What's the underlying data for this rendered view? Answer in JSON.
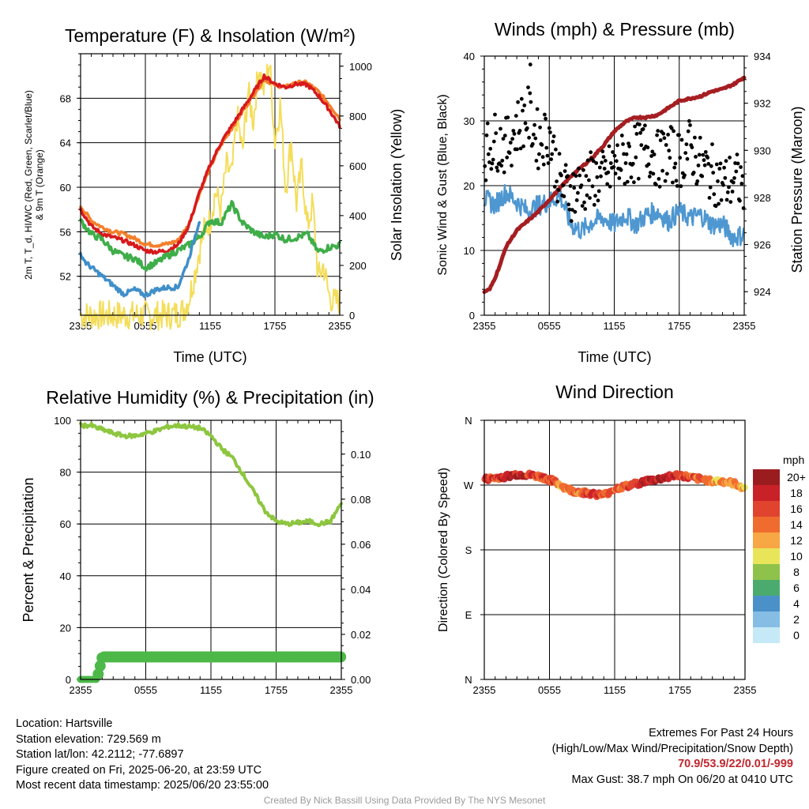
{
  "panels": {
    "temp": {
      "title": "Temperature (F) & Insolation (W/m²)",
      "ylabel_left_line1": "2m T, T_d, HI/WC (Red, Green, Scarlet/Blue)",
      "ylabel_left_line2": "& 9m T (Orange)",
      "ylabel_right": "Solar Insolation (Yellow)",
      "xlabel": "Time (UTC)"
    },
    "winds": {
      "title": "Winds (mph) & Pressure (mb)",
      "ylabel_left": "Sonic Wind & Gust (Blue, Black)",
      "ylabel_right": "Station Pressure (Maroon)",
      "xlabel": "Time (UTC)"
    },
    "rh": {
      "title": "Relative Humidity (%) & Precipitation (in)",
      "ylabel_left": "Percent & Precipitation"
    },
    "wdir": {
      "title": "Wind Direction",
      "ylabel_left": "Direction (Colored By Speed)",
      "colorbar_unit": "mph"
    }
  },
  "meta": {
    "location": "Location: Hartsville",
    "elevation": "Station elevation: 729.569 m",
    "latlon": "Station lat/lon: 42.2112; -77.6897",
    "created": "Figure created on Fri, 2025-06-20, at 23:59 UTC",
    "recent": "Most recent data timestamp: 2025/06/20 23:55:00",
    "extremes_title": "Extremes For Past 24 Hours",
    "extremes_sub": "(High/Low/Max Wind/Precipitation/Snow Depth)",
    "extremes_values": "70.9/53.9/22/0.01/-999",
    "max_gust": "Max Gust: 38.7 mph On 06/20 at 0410 UTC",
    "credit": "Created By Nick Bassill Using Data Provided By The NYS Mesonet"
  },
  "colors": {
    "temp_red": "#d7191c",
    "temp_orange": "#f47f2a",
    "dewpoint_green": "#3fae49",
    "heat_index_blue": "#3f8fc9",
    "insolation_yellow": "#f4dd5a",
    "wind_blue": "#4e97d1",
    "gust_black": "#000000",
    "pressure_maroon": "#a51e22",
    "rh_green": "#8dc63f",
    "precip_green": "#4cb848",
    "extremes_red": "#c0272d"
  },
  "chart_data": [
    {
      "type": "line",
      "title": "Temperature (F) & Insolation (W/m²)",
      "xlabel": "Time (UTC)",
      "x_ticks": [
        "2355",
        "0555",
        "1155",
        "1755",
        "2355"
      ],
      "x_range_hours": [
        0,
        24
      ],
      "ylabel": "2m T, T_d, HI/WC (Red, Green, Scarlet/Blue) & 9m T (Orange)",
      "ylim": [
        48.5,
        72
      ],
      "yticks": [
        52,
        56,
        60,
        64,
        68
      ],
      "y2label": "Solar Insolation (Yellow)",
      "y2lim": [
        0,
        1050
      ],
      "y2ticks": [
        0,
        200,
        400,
        600,
        800,
        1000
      ],
      "grid": true,
      "series": [
        {
          "name": "2m T",
          "color": "#d7191c",
          "axis": "left",
          "x": [
            0,
            1,
            2,
            3,
            4,
            5,
            6,
            7,
            8,
            9,
            10,
            11,
            12,
            13,
            14,
            15,
            16,
            17,
            18,
            19,
            20,
            21,
            22,
            23,
            24
          ],
          "values": [
            58,
            56.5,
            55.8,
            55.5,
            55.2,
            54.8,
            54.3,
            54.2,
            54.3,
            54.8,
            56.5,
            59.5,
            62,
            64,
            65.5,
            67,
            68.5,
            70,
            69.3,
            69,
            69.3,
            69.2,
            68.3,
            67,
            65.5
          ]
        },
        {
          "name": "9m T",
          "color": "#f47f2a",
          "axis": "left",
          "x": [
            0,
            1,
            2,
            3,
            4,
            5,
            6,
            7,
            8,
            9,
            10,
            11,
            12,
            13,
            14,
            15,
            16,
            17,
            18,
            19,
            20,
            21,
            22,
            23,
            24
          ],
          "values": [
            58.3,
            57,
            56.4,
            56,
            55.8,
            55.4,
            54.9,
            54.8,
            54.9,
            55.2,
            56.6,
            59.4,
            61.8,
            63.8,
            65.3,
            66.8,
            68.3,
            69.7,
            69.2,
            69,
            69.4,
            69.4,
            68.6,
            67.5,
            66.2
          ]
        },
        {
          "name": "T_d",
          "color": "#3fae49",
          "axis": "left",
          "x": [
            0,
            1,
            2,
            3,
            4,
            5,
            6,
            7,
            8,
            9,
            10,
            11,
            12,
            13,
            14,
            15,
            16,
            17,
            18,
            19,
            20,
            21,
            22,
            23,
            24
          ],
          "values": [
            57,
            55.8,
            55.3,
            54.3,
            53.8,
            53.6,
            52.8,
            53.2,
            53.8,
            54.3,
            54.8,
            55.5,
            57,
            56.8,
            58.5,
            56.8,
            56,
            55.5,
            55.8,
            55.3,
            55.5,
            55.8,
            54.2,
            54.6,
            54.8
          ]
        },
        {
          "name": "HI/WC",
          "color": "#3f8fc9",
          "axis": "left",
          "x": [
            0,
            0.5,
            1,
            2,
            3,
            4,
            5,
            6,
            7,
            8,
            9,
            10,
            11
          ],
          "values": [
            54,
            53.2,
            52.8,
            52,
            51.2,
            50.4,
            50.8,
            50.3,
            50.8,
            51,
            51,
            53.5,
            57
          ]
        },
        {
          "name": "Solar Insolation",
          "color": "#f4dd5a",
          "axis": "right",
          "x": [
            0,
            5,
            8,
            9,
            9.5,
            10,
            10.5,
            11,
            11.5,
            12,
            12.5,
            13,
            13.5,
            14,
            14.5,
            15,
            15.5,
            16,
            16.5,
            17,
            17.5,
            18,
            18.5,
            19,
            19.5,
            20,
            20.5,
            21,
            21.5,
            22,
            22.5,
            23,
            23.5,
            24
          ],
          "values": [
            0,
            0,
            0,
            5,
            20,
            60,
            150,
            260,
            350,
            380,
            500,
            420,
            600,
            560,
            800,
            650,
            900,
            780,
            1000,
            900,
            1020,
            700,
            850,
            500,
            700,
            450,
            600,
            350,
            450,
            150,
            200,
            80,
            50,
            60
          ]
        }
      ]
    },
    {
      "type": "line",
      "title": "Winds (mph) & Pressure (mb)",
      "xlabel": "Time (UTC)",
      "x_ticks": [
        "2355",
        "0555",
        "1155",
        "1755",
        "2355"
      ],
      "x_range_hours": [
        0,
        24
      ],
      "ylabel": "Sonic Wind & Gust (Blue, Black)",
      "ylim": [
        0,
        40
      ],
      "yticks": [
        0,
        10,
        20,
        30,
        40
      ],
      "y2label": "Station Pressure (Maroon)",
      "y2lim": [
        923,
        934
      ],
      "y2ticks": [
        924,
        926,
        928,
        930,
        932,
        934
      ],
      "grid": true,
      "series": [
        {
          "name": "Sonic Wind",
          "color": "#4e97d1",
          "axis": "left",
          "x": [
            0,
            1,
            2,
            3,
            4,
            5,
            6,
            7,
            8,
            9,
            10,
            11,
            12,
            13,
            14,
            15,
            16,
            17,
            18,
            19,
            20,
            21,
            22,
            23,
            24
          ],
          "values": [
            18,
            17,
            19,
            17.5,
            16,
            17,
            17.5,
            18.5,
            14,
            13,
            14.5,
            15,
            14,
            15.5,
            14,
            15.5,
            16,
            14.5,
            16,
            15,
            15.5,
            14,
            14,
            12,
            12.5
          ]
        },
        {
          "name": "Gust",
          "color": "#000000",
          "axis": "left",
          "mode": "markers",
          "x": [
            0,
            1,
            2,
            3,
            4,
            5,
            6,
            7,
            8,
            9,
            10,
            11,
            12,
            13,
            14,
            15,
            16,
            17,
            18,
            19,
            20,
            21,
            22,
            23,
            24
          ],
          "values": [
            25,
            27,
            26,
            29,
            31,
            27,
            28,
            20,
            19,
            20,
            21,
            21,
            23,
            24,
            25,
            26,
            24,
            25,
            24,
            26,
            23,
            22,
            20,
            21,
            20
          ],
          "max": 38.7
        },
        {
          "name": "Station Pressure",
          "color": "#a51e22",
          "axis": "right",
          "x": [
            0,
            0.5,
            1,
            1.5,
            2,
            3,
            4,
            5,
            6,
            7,
            8,
            9,
            10,
            11,
            12,
            13,
            14,
            15,
            16,
            17,
            18,
            19,
            20,
            21,
            22,
            23,
            24
          ],
          "values": [
            924,
            924.1,
            924.6,
            925.2,
            925.9,
            926.6,
            927,
            927.4,
            927.9,
            928.4,
            928.9,
            929.3,
            929.7,
            930.2,
            930.8,
            931.2,
            931.4,
            931.4,
            931.5,
            931.8,
            932.1,
            932.2,
            932.3,
            932.5,
            932.6,
            932.8,
            933.1
          ]
        }
      ]
    },
    {
      "type": "line",
      "title": "Relative Humidity (%) & Precipitation (in)",
      "ylabel": "Percent & Precipitation",
      "x_ticks": [
        "2355",
        "0555",
        "1155",
        "1755",
        "2355"
      ],
      "x_range_hours": [
        0,
        24
      ],
      "ylim": [
        0,
        100
      ],
      "yticks": [
        0,
        20,
        40,
        60,
        80,
        100
      ],
      "y2lim": [
        0,
        0.115
      ],
      "y2ticks": [
        0.0,
        0.02,
        0.04,
        0.06,
        0.08,
        0.1
      ],
      "grid": true,
      "series": [
        {
          "name": "Relative Humidity",
          "color": "#8dc63f",
          "axis": "left",
          "x": [
            0,
            1,
            1.5,
            2,
            3,
            4,
            5,
            6,
            7,
            8,
            9,
            10,
            11,
            12,
            13,
            14,
            15,
            16,
            17,
            18,
            19,
            20,
            21,
            22,
            23,
            24
          ],
          "values": [
            98,
            98,
            97,
            96.5,
            95,
            94,
            94,
            95,
            96,
            97.5,
            98,
            97.5,
            97,
            94,
            89,
            85.5,
            79,
            72,
            65,
            61,
            60,
            60.5,
            61,
            60,
            61,
            68
          ]
        },
        {
          "name": "Precipitation",
          "color": "#4cb848",
          "axis": "right",
          "x": [
            0,
            1.5,
            2,
            24
          ],
          "values": [
            0,
            0,
            0.01,
            0.01
          ]
        }
      ]
    },
    {
      "type": "scatter",
      "title": "Wind Direction",
      "ylabel": "Direction (Colored By Speed)",
      "x_ticks": [
        "2355",
        "0555",
        "1155",
        "1755",
        "2355"
      ],
      "x_range_hours": [
        0,
        24
      ],
      "ytick_labels": [
        "N",
        "E",
        "S",
        "W",
        "N"
      ],
      "y_degrees": [
        0,
        90,
        180,
        270,
        360
      ],
      "grid": true,
      "colorbar": {
        "unit": "mph",
        "labels": [
          "0",
          "2",
          "4",
          "6",
          "8",
          "10",
          "12",
          "14",
          "16",
          "18",
          "20+"
        ],
        "colors": [
          "#c6e9f7",
          "#86bde5",
          "#4a90c9",
          "#4bab6e",
          "#8ec24a",
          "#e9e55a",
          "#f7a743",
          "#ef6b2e",
          "#e0432e",
          "#c92128",
          "#9b1c1f"
        ]
      },
      "series": [
        {
          "name": "Direction",
          "x": [
            0,
            1,
            2,
            3,
            4,
            5,
            6,
            7,
            8,
            9,
            10,
            11,
            12,
            13,
            14,
            15,
            16,
            17,
            18,
            19,
            20,
            21,
            22,
            23,
            24
          ],
          "values": [
            278,
            280,
            282,
            285,
            284,
            282,
            278,
            270,
            262,
            260,
            258,
            256,
            265,
            268,
            272,
            276,
            278,
            282,
            284,
            280,
            278,
            276,
            275,
            272,
            266
          ],
          "speed": [
            16,
            16,
            18,
            18,
            17,
            16,
            16,
            13,
            14,
            15,
            16,
            15,
            14,
            16,
            17,
            18,
            19,
            18,
            16,
            15,
            14,
            13,
            12,
            13,
            12
          ]
        }
      ]
    }
  ]
}
